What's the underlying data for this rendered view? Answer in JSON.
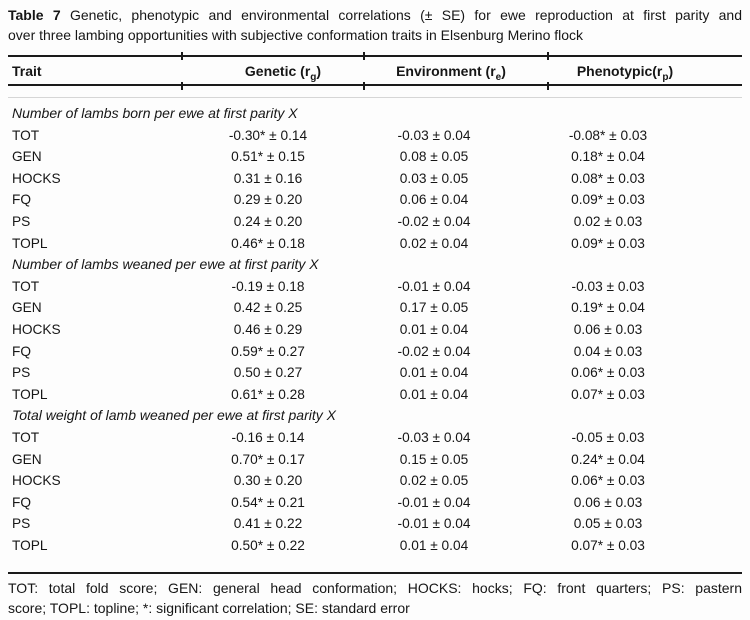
{
  "document": {
    "title": {
      "label": "Table 7",
      "line1_rest": "Genetic, phenotypic and environmental correlations (± SE) for ewe reproduction at first parity and",
      "line2": "over three lambing opportunities with subjective conformation traits in Elsenburg Merino flock"
    },
    "columns": {
      "trait": "Trait",
      "genetic": {
        "pre": "Genetic (r",
        "sub": "g",
        "post": ")"
      },
      "environment": {
        "pre": "Environment (r",
        "sub": "e",
        "post": ")"
      },
      "phenotypic": {
        "pre": "Phenotypic(r",
        "sub": "p",
        "post": ")"
      }
    },
    "sections": [
      {
        "header": "Number of lambs born per ewe at first parity X",
        "rows": [
          {
            "trait": "TOT",
            "genetic": "-0.30* ± 0.14",
            "environment": "-0.03 ± 0.04",
            "phenotypic": "-0.08* ± 0.03"
          },
          {
            "trait": "GEN",
            "genetic": "0.51* ± 0.15",
            "environment": "0.08 ± 0.05",
            "phenotypic": "0.18* ± 0.04"
          },
          {
            "trait": "HOCKS",
            "genetic": "0.31 ± 0.16",
            "environment": "0.03 ± 0.05",
            "phenotypic": "0.08* ± 0.03"
          },
          {
            "trait": "FQ",
            "genetic": "0.29 ± 0.20",
            "environment": "0.06 ± 0.04",
            "phenotypic": "0.09* ± 0.03"
          },
          {
            "trait": "PS",
            "genetic": "0.24 ± 0.20",
            "environment": "-0.02 ± 0.04",
            "phenotypic": "0.02 ± 0.03"
          },
          {
            "trait": "TOPL",
            "genetic": "0.46* ± 0.18",
            "environment": "0.02 ± 0.04",
            "phenotypic": "0.09* ± 0.03"
          }
        ]
      },
      {
        "header": "Number of lambs weaned per ewe at first parity X",
        "rows": [
          {
            "trait": "TOT",
            "genetic": "-0.19 ± 0.18",
            "environment": "-0.01 ± 0.04",
            "phenotypic": "-0.03 ± 0.03"
          },
          {
            "trait": "GEN",
            "genetic": "0.42 ± 0.25",
            "environment": "0.17 ± 0.05",
            "phenotypic": "0.19* ± 0.04"
          },
          {
            "trait": "HOCKS",
            "genetic": "0.46 ± 0.29",
            "environment": "0.01 ± 0.04",
            "phenotypic": "0.06 ± 0.03"
          },
          {
            "trait": "FQ",
            "genetic": "0.59* ± 0.27",
            "environment": "-0.02 ± 0.04",
            "phenotypic": "0.04 ± 0.03"
          },
          {
            "trait": "PS",
            "genetic": "0.50 ± 0.27",
            "environment": "0.01 ± 0.04",
            "phenotypic": "0.06* ± 0.03"
          },
          {
            "trait": "TOPL",
            "genetic": "0.61* ± 0.28",
            "environment": "0.01 ± 0.04",
            "phenotypic": "0.07* ± 0.03"
          }
        ]
      },
      {
        "header": "Total weight of lamb weaned per ewe at first parity X",
        "rows": [
          {
            "trait": "TOT",
            "genetic": "-0.16 ± 0.14",
            "environment": "-0.03 ± 0.04",
            "phenotypic": "-0.05 ± 0.03"
          },
          {
            "trait": "GEN",
            "genetic": "0.70* ± 0.17",
            "environment": "0.15 ± 0.05",
            "phenotypic": "0.24* ± 0.04"
          },
          {
            "trait": "HOCKS",
            "genetic": "0.30 ± 0.20",
            "environment": "0.02 ± 0.05",
            "phenotypic": "0.06* ± 0.03"
          },
          {
            "trait": "FQ",
            "genetic": "0.54* ± 0.21",
            "environment": "-0.01 ± 0.04",
            "phenotypic": "0.06 ± 0.03"
          },
          {
            "trait": "PS",
            "genetic": "0.41 ± 0.22",
            "environment": "-0.01 ± 0.04",
            "phenotypic": "0.05 ± 0.03"
          },
          {
            "trait": "TOPL",
            "genetic": "0.50* ± 0.22",
            "environment": "0.01 ± 0.04",
            "phenotypic": "0.07* ± 0.03"
          }
        ]
      }
    ],
    "footnote": {
      "line1": "TOT: total fold score; GEN: general head conformation; HOCKS: hocks; FQ: front quarters; PS: pastern",
      "line2": "score; TOPL: topline; *: significant correlation; SE: standard error"
    }
  },
  "colors": {
    "text": "#161616",
    "rule": "#1a1a1a",
    "background": "#fdfdfd"
  }
}
